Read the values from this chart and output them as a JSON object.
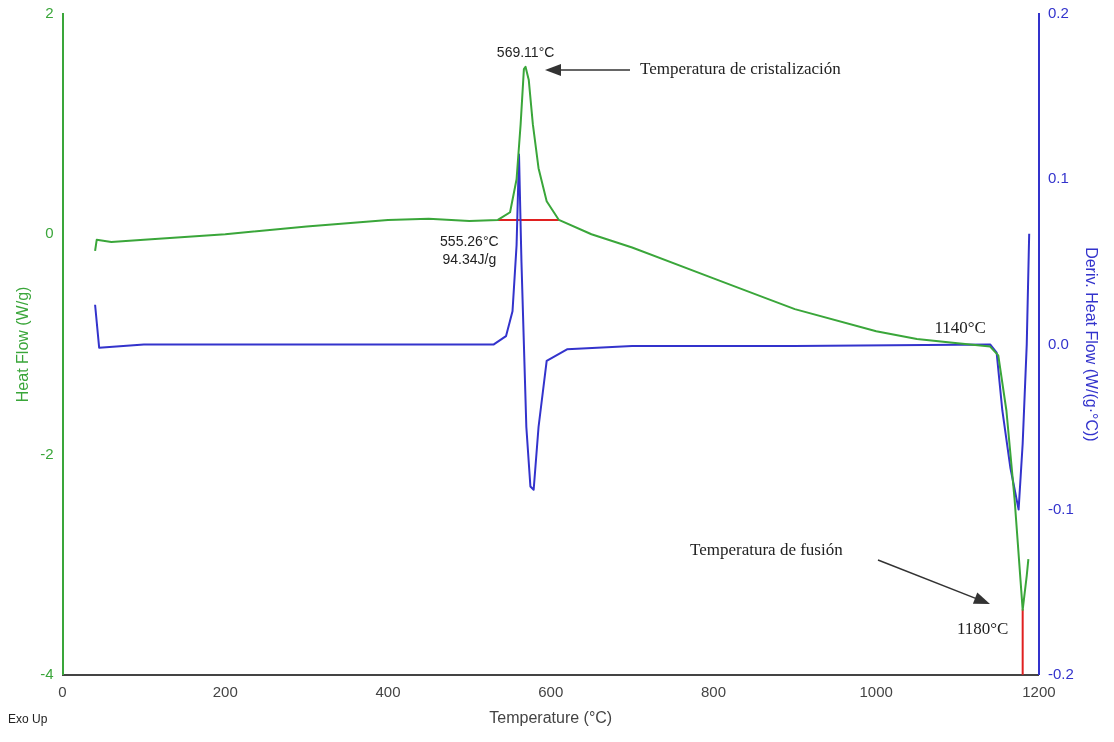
{
  "chart_data": {
    "type": "line",
    "xlabel": "Temperature (°C)",
    "ylabel": "Heat Flow (W/g)",
    "y2label": "Deriv. Heat Flow (W/(g·°C))",
    "xlim": [
      0,
      1200
    ],
    "xticks": [
      0,
      200,
      400,
      600,
      800,
      1000,
      1200
    ],
    "ylim": [
      -4,
      2
    ],
    "yticks": [
      -4,
      -2,
      0,
      2
    ],
    "y2lim": [
      -0.2,
      0.2
    ],
    "y2ticks": [
      -0.2,
      -0.1,
      {
        "value": 0,
        "label": "0.0"
      },
      0.1,
      0.2
    ],
    "grid": false,
    "legend": false,
    "marker": "none",
    "line_style": "solid",
    "series": [
      {
        "color": "#3aa63a",
        "x": [
          40,
          42,
          60,
          100,
          200,
          300,
          400,
          450,
          500,
          535,
          550,
          558,
          563,
          567,
          569,
          573,
          578,
          585,
          595,
          610,
          650,
          700,
          800,
          900,
          1000,
          1050,
          1100,
          1140,
          1150,
          1160,
          1170,
          1180,
          1185,
          1187
        ],
        "values": [
          -0.15,
          -0.05,
          -0.07,
          -0.05,
          0.0,
          0.07,
          0.13,
          0.14,
          0.12,
          0.13,
          0.2,
          0.5,
          1.0,
          1.5,
          1.52,
          1.4,
          1.0,
          0.6,
          0.3,
          0.13,
          0.0,
          -0.12,
          -0.4,
          -0.68,
          -0.88,
          -0.95,
          -0.99,
          -1.02,
          -1.1,
          -1.6,
          -2.4,
          -3.41,
          -3.1,
          -2.95
        ]
      },
      {
        "color": "#3333cc",
        "axis": "y2",
        "x": [
          40,
          45,
          100,
          300,
          530,
          545,
          553,
          558,
          561,
          564,
          567,
          570,
          575,
          579,
          585,
          595,
          620,
          700,
          900,
          1140,
          1148,
          1155,
          1165,
          1175,
          1180,
          1185,
          1188
        ],
        "values": [
          0.024,
          -0.002,
          0,
          0,
          0,
          0.005,
          0.02,
          0.06,
          0.115,
          0.05,
          0,
          -0.05,
          -0.086,
          -0.088,
          -0.05,
          -0.01,
          -0.003,
          -0.001,
          -0.001,
          0,
          -0.005,
          -0.04,
          -0.075,
          -0.1,
          -0.06,
          0,
          0.067
        ]
      },
      {
        "color": "#e02020",
        "x": [
          535,
          610
        ],
        "values": [
          0.13,
          0.13
        ]
      },
      {
        "color": "#e02020",
        "x": [
          1180,
          1180
        ],
        "values": [
          -3.41,
          -4
        ]
      }
    ],
    "annotations": [
      {
        "text": "569.11°C",
        "x": 569.11,
        "y": 1.52
      },
      {
        "text": "555.26°C\n94.34J/g",
        "x": 555.26,
        "y": 0.13
      },
      "Temperatura de cristalización",
      {
        "text": "1140°C",
        "x": 1140,
        "y": -1.02
      },
      "Temperatura de fusión",
      {
        "text": "1180°C",
        "x": 1180,
        "y": -3.41
      },
      "Exo Up"
    ]
  }
}
